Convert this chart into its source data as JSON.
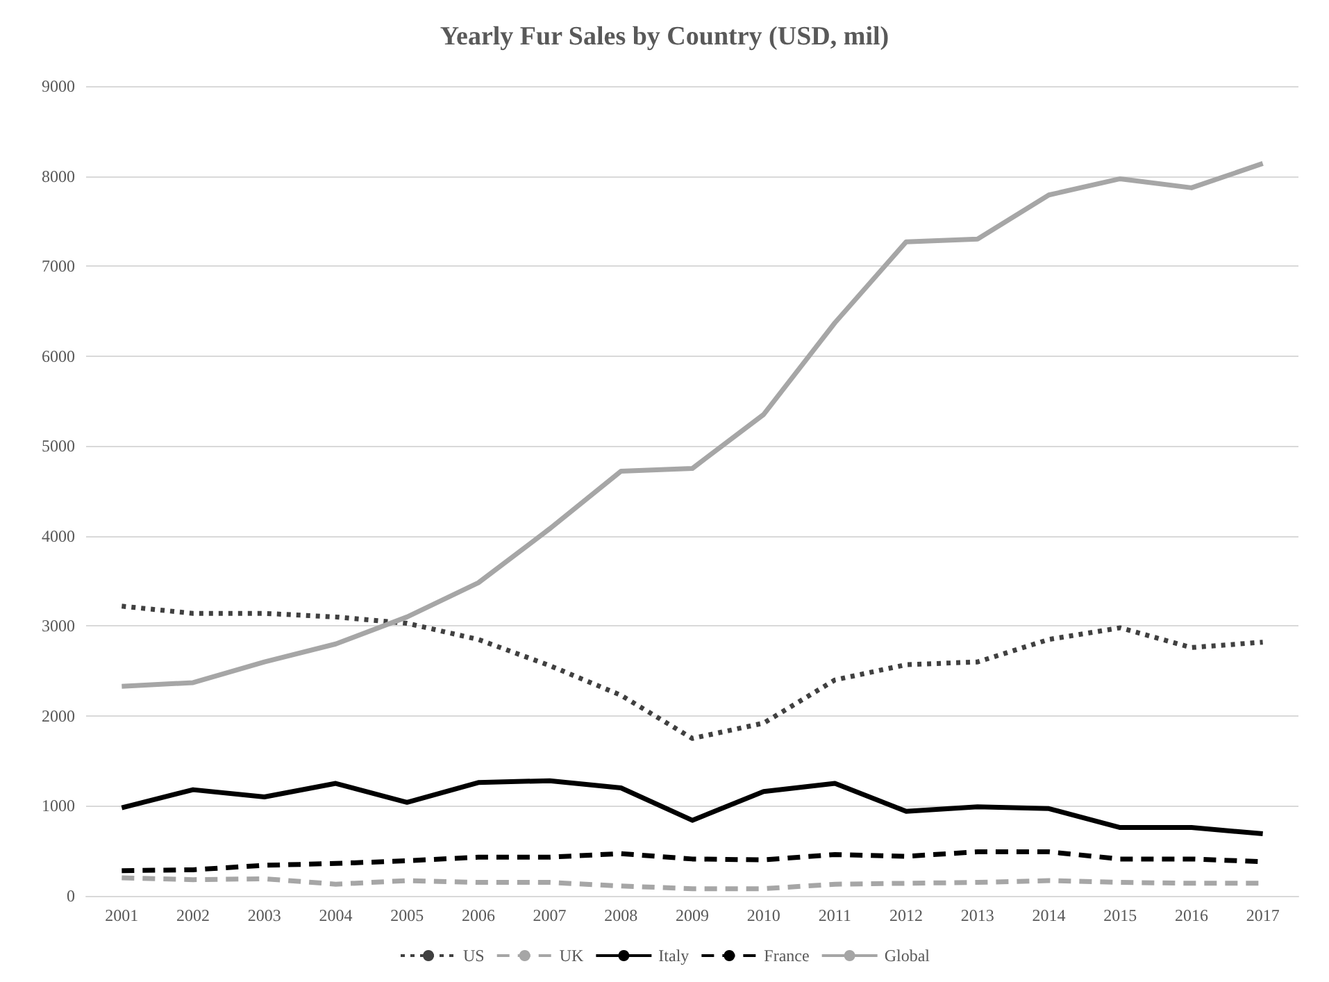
{
  "chart_data": {
    "type": "line",
    "title": "Yearly Fur Sales by Country (USD, mil)",
    "categories": [
      "2001",
      "2002",
      "2003",
      "2004",
      "2005",
      "2006",
      "2007",
      "2008",
      "2009",
      "2010",
      "2011",
      "2012",
      "2013",
      "2014",
      "2015",
      "2016",
      "2017"
    ],
    "series": [
      {
        "name": "US",
        "color": "#404040",
        "line_style": "dotted",
        "values": [
          3220,
          3140,
          3140,
          3100,
          3030,
          2850,
          2560,
          2230,
          1750,
          1920,
          2400,
          2570,
          2600,
          2850,
          2980,
          2760,
          2820
        ]
      },
      {
        "name": "UK",
        "color": "#a6a6a6",
        "line_style": "dashed",
        "values": [
          200,
          180,
          190,
          130,
          170,
          150,
          150,
          110,
          80,
          80,
          130,
          140,
          150,
          170,
          150,
          140,
          140
        ]
      },
      {
        "name": "Italy",
        "color": "#000000",
        "line_style": "solid",
        "values": [
          980,
          1180,
          1100,
          1250,
          1040,
          1260,
          1280,
          1200,
          840,
          1160,
          1250,
          940,
          990,
          970,
          760,
          760,
          690
        ]
      },
      {
        "name": "France",
        "color": "#000000",
        "line_style": "dashed",
        "values": [
          280,
          290,
          340,
          360,
          390,
          430,
          430,
          470,
          410,
          400,
          460,
          440,
          490,
          490,
          410,
          410,
          380
        ]
      },
      {
        "name": "Global",
        "color": "#a6a6a6",
        "line_style": "solid",
        "values": [
          2330,
          2370,
          2600,
          2800,
          3100,
          3480,
          4080,
          4720,
          4750,
          5350,
          6370,
          7270,
          7300,
          7790,
          7970,
          7870,
          8140
        ]
      }
    ],
    "ylim": [
      0,
      9000
    ],
    "yticks": [
      0,
      1000,
      2000,
      3000,
      4000,
      5000,
      6000,
      7000,
      8000,
      9000
    ],
    "grid": "y",
    "legend": "bottom",
    "marker": "none"
  }
}
